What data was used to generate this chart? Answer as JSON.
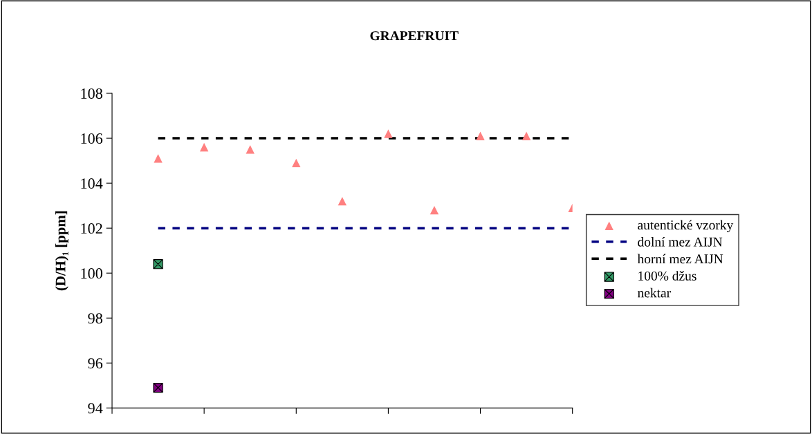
{
  "chart_data": {
    "type": "scatter",
    "title": "GRAPEFRUIT",
    "ylabel": "(D/H)₁ [ppm]",
    "categories": [
      null,
      null,
      null,
      null,
      null,
      null,
      null,
      null,
      null,
      null
    ],
    "ylim": [
      94,
      108
    ],
    "yticks": [
      94,
      96,
      98,
      100,
      102,
      104,
      106,
      108
    ],
    "tick_labels": "y",
    "grid": false,
    "legend": "right",
    "series": [
      {
        "name": "autentické vzorky",
        "marker": "triangle",
        "color": "#ff8080",
        "values": [
          105.1,
          105.6,
          105.5,
          104.9,
          103.2,
          106.2,
          102.8,
          106.1,
          106.1,
          102.9
        ]
      },
      {
        "name": "dolní mez AIJN",
        "type": "line",
        "line_style": "dashed",
        "marker": "none",
        "color": "#000080",
        "values": [
          102,
          102,
          102,
          102,
          102,
          102,
          102,
          102,
          102,
          102
        ]
      },
      {
        "name": "horní mez AIJN",
        "type": "line",
        "line_style": "dashed",
        "marker": "none",
        "color": "#000000",
        "values": [
          106,
          106,
          106,
          106,
          106,
          106,
          106,
          106,
          106,
          106
        ]
      },
      {
        "name": "100% džus",
        "marker": "cross",
        "color": "#339966",
        "values": [
          100.4,
          null,
          null,
          null,
          null,
          null,
          null,
          null,
          null,
          null
        ]
      },
      {
        "name": "nektar",
        "marker": "cross",
        "color": "#800080",
        "values": [
          94.9,
          null,
          null,
          null,
          null,
          null,
          null,
          null,
          null,
          null
        ]
      }
    ]
  }
}
